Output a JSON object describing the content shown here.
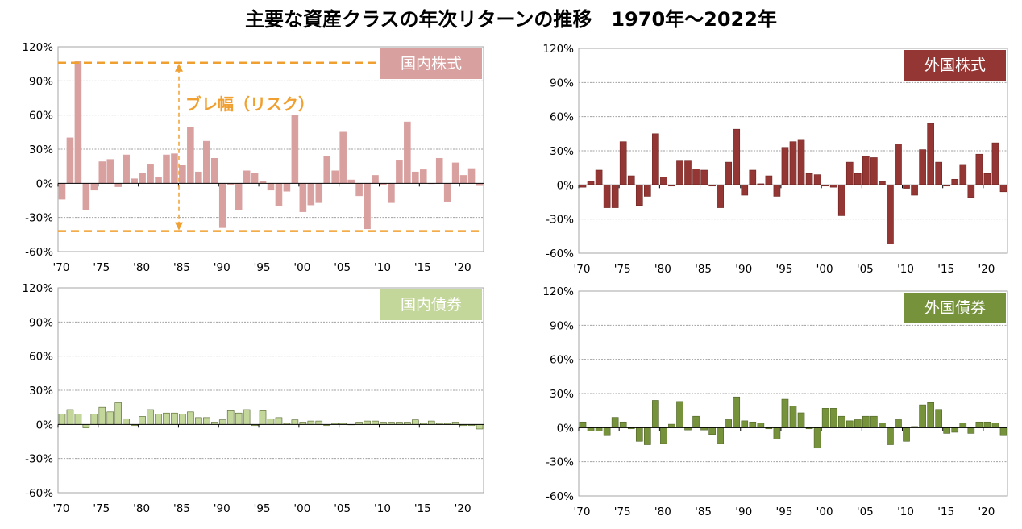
{
  "title": "主要な資産クラスの年次リターンの推移　1970年～2022年",
  "annotation": {
    "text": "ブレ幅（リスク）",
    "color": "#f0a030"
  },
  "chart_data": [
    {
      "type": "bar",
      "name": "国内株式",
      "label_color": "#d9a0a0",
      "bar_color": "#d9a0a0",
      "bar_stroke": "#d9a0a0",
      "x_start_year": 1970,
      "years": [
        1970,
        1971,
        1972,
        1973,
        1974,
        1975,
        1976,
        1977,
        1978,
        1979,
        1980,
        1981,
        1982,
        1983,
        1984,
        1985,
        1986,
        1987,
        1988,
        1989,
        1990,
        1991,
        1992,
        1993,
        1994,
        1995,
        1996,
        1997,
        1998,
        1999,
        2000,
        2001,
        2002,
        2003,
        2004,
        2005,
        2006,
        2007,
        2008,
        2009,
        2010,
        2011,
        2012,
        2013,
        2014,
        2015,
        2016,
        2017,
        2018,
        2019,
        2020,
        2021,
        2022
      ],
      "values": [
        -14,
        40,
        107,
        -23,
        -6,
        19,
        21,
        -3,
        25,
        4,
        9,
        17,
        5,
        25,
        26,
        16,
        49,
        10,
        37,
        22,
        -39,
        -1,
        -23,
        11,
        9,
        2,
        -6,
        -20,
        -7,
        60,
        -25,
        -19,
        -17,
        24,
        11,
        45,
        3,
        -11,
        -40,
        7,
        -1,
        -17,
        20,
        54,
        10,
        12,
        0,
        22,
        -16,
        18,
        7,
        13,
        -2
      ],
      "ylim": [
        -60,
        120
      ],
      "yticks": [
        "120%",
        "90%",
        "60%",
        "30%",
        "0%",
        "-30%",
        "-60%"
      ],
      "xticks": [
        "'70",
        "'75",
        "'80",
        "'85",
        "'90",
        "'95",
        "'00",
        "'05",
        "'10",
        "'15",
        "'20"
      ],
      "risk_band": [
        106,
        -42
      ]
    },
    {
      "type": "bar",
      "name": "外国株式",
      "label_color": "#943634",
      "bar_color": "#943634",
      "bar_stroke": "#6e2422",
      "x_start_year": 1970,
      "years": [
        1970,
        1971,
        1972,
        1973,
        1974,
        1975,
        1976,
        1977,
        1978,
        1979,
        1980,
        1981,
        1982,
        1983,
        1984,
        1985,
        1986,
        1987,
        1988,
        1989,
        1990,
        1991,
        1992,
        1993,
        1994,
        1995,
        1996,
        1997,
        1998,
        1999,
        2000,
        2001,
        2002,
        2003,
        2004,
        2005,
        2006,
        2007,
        2008,
        2009,
        2010,
        2011,
        2012,
        2013,
        2014,
        2015,
        2016,
        2017,
        2018,
        2019,
        2020,
        2021,
        2022
      ],
      "values": [
        -2,
        3,
        13,
        -20,
        -20,
        38,
        8,
        -18,
        -10,
        45,
        7,
        -1,
        21,
        21,
        14,
        13,
        -1,
        -20,
        20,
        49,
        -9,
        13,
        1,
        8,
        -10,
        33,
        38,
        40,
        10,
        9,
        -1,
        -2,
        -27,
        20,
        10,
        25,
        24,
        3,
        -52,
        36,
        -3,
        -9,
        31,
        54,
        20,
        -1,
        5,
        18,
        -11,
        27,
        10,
        37,
        -6
      ],
      "ylim": [
        -60,
        120
      ],
      "yticks": [
        "120%",
        "90%",
        "60%",
        "30%",
        "0%",
        "-30%",
        "-60%"
      ],
      "xticks": [
        "'70",
        "'75",
        "'80",
        "'85",
        "'90",
        "'95",
        "'00",
        "'05",
        "'10",
        "'15",
        "'20"
      ]
    },
    {
      "type": "bar",
      "name": "国内債券",
      "label_color": "#c4d79b",
      "bar_color": "#c4d79b",
      "bar_stroke": "#4f6228",
      "x_start_year": 1970,
      "years": [
        1970,
        1971,
        1972,
        1973,
        1974,
        1975,
        1976,
        1977,
        1978,
        1979,
        1980,
        1981,
        1982,
        1983,
        1984,
        1985,
        1986,
        1987,
        1988,
        1989,
        1990,
        1991,
        1992,
        1993,
        1994,
        1995,
        1996,
        1997,
        1998,
        1999,
        2000,
        2001,
        2002,
        2003,
        2004,
        2005,
        2006,
        2007,
        2008,
        2009,
        2010,
        2011,
        2012,
        2013,
        2014,
        2015,
        2016,
        2017,
        2018,
        2019,
        2020,
        2021,
        2022
      ],
      "values": [
        9,
        13,
        9,
        -3,
        9,
        15,
        11,
        19,
        5,
        -1,
        7,
        13,
        9,
        10,
        10,
        9,
        11,
        6,
        6,
        2,
        4,
        12,
        10,
        13,
        -1,
        12,
        5,
        6,
        1,
        4,
        2,
        3,
        3,
        -1,
        1,
        1,
        0,
        2,
        3,
        3,
        2,
        2,
        2,
        2,
        4,
        1,
        3,
        1,
        1,
        2,
        -1,
        -1,
        -4
      ],
      "ylim": [
        -60,
        120
      ],
      "yticks": [
        "120%",
        "90%",
        "60%",
        "30%",
        "0%",
        "-30%",
        "-60%"
      ],
      "xticks": [
        "'70",
        "'75",
        "'80",
        "'85",
        "'90",
        "'95",
        "'00",
        "'05",
        "'10",
        "'15",
        "'20"
      ]
    },
    {
      "type": "bar",
      "name": "外国債券",
      "label_color": "#76933c",
      "bar_color": "#76933c",
      "bar_stroke": "#4f6228",
      "x_start_year": 1970,
      "years": [
        1970,
        1971,
        1972,
        1973,
        1974,
        1975,
        1976,
        1977,
        1978,
        1979,
        1980,
        1981,
        1982,
        1983,
        1984,
        1985,
        1986,
        1987,
        1988,
        1989,
        1990,
        1991,
        1992,
        1993,
        1994,
        1995,
        1996,
        1997,
        1998,
        1999,
        2000,
        2001,
        2002,
        2003,
        2004,
        2005,
        2006,
        2007,
        2008,
        2009,
        2010,
        2011,
        2012,
        2013,
        2014,
        2015,
        2016,
        2017,
        2018,
        2019,
        2020,
        2021,
        2022
      ],
      "values": [
        5,
        -3,
        -3,
        -7,
        9,
        5,
        -1,
        -12,
        -15,
        24,
        -14,
        3,
        23,
        -2,
        10,
        -2,
        -6,
        -14,
        7,
        27,
        6,
        5,
        4,
        -1,
        -10,
        25,
        19,
        13,
        -1,
        -18,
        17,
        17,
        10,
        6,
        7,
        10,
        10,
        4,
        -15,
        7,
        -12,
        1,
        20,
        22,
        16,
        -5,
        -4,
        4,
        -5,
        5,
        5,
        4,
        -7
      ],
      "ylim": [
        -60,
        120
      ],
      "yticks": [
        "120%",
        "90%",
        "60%",
        "30%",
        "0%",
        "-30%",
        "-60%"
      ],
      "xticks": [
        "'70",
        "'75",
        "'80",
        "'85",
        "'90",
        "'95",
        "'00",
        "'05",
        "'10",
        "'15",
        "'20"
      ]
    }
  ]
}
